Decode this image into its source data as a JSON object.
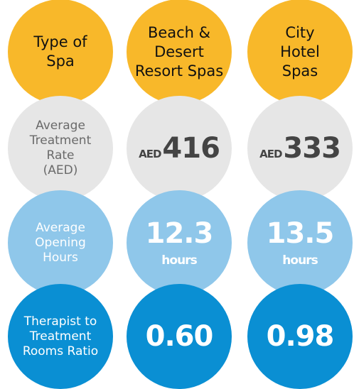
{
  "header": {
    "label": [
      "Type of",
      "Spa"
    ],
    "columns": [
      [
        "Beach &",
        "Desert",
        "Resort Spas"
      ],
      [
        "City",
        "Hotel",
        "Spas"
      ]
    ]
  },
  "rows": [
    {
      "label": [
        "Average",
        "Treatment",
        "Rate",
        "(AED)"
      ],
      "cells": [
        {
          "prefix": "AED",
          "value": "416"
        },
        {
          "prefix": "AED",
          "value": "333"
        }
      ]
    },
    {
      "label": [
        "Average",
        "Opening",
        "Hours"
      ],
      "cells": [
        {
          "value": "12.3",
          "unit": "hours"
        },
        {
          "value": "13.5",
          "unit": "hours"
        }
      ]
    },
    {
      "label": [
        "Therapist to",
        "Treatment",
        "Rooms Ratio"
      ],
      "cells": [
        {
          "value": "0.60"
        },
        {
          "value": "0.98"
        }
      ]
    }
  ]
}
